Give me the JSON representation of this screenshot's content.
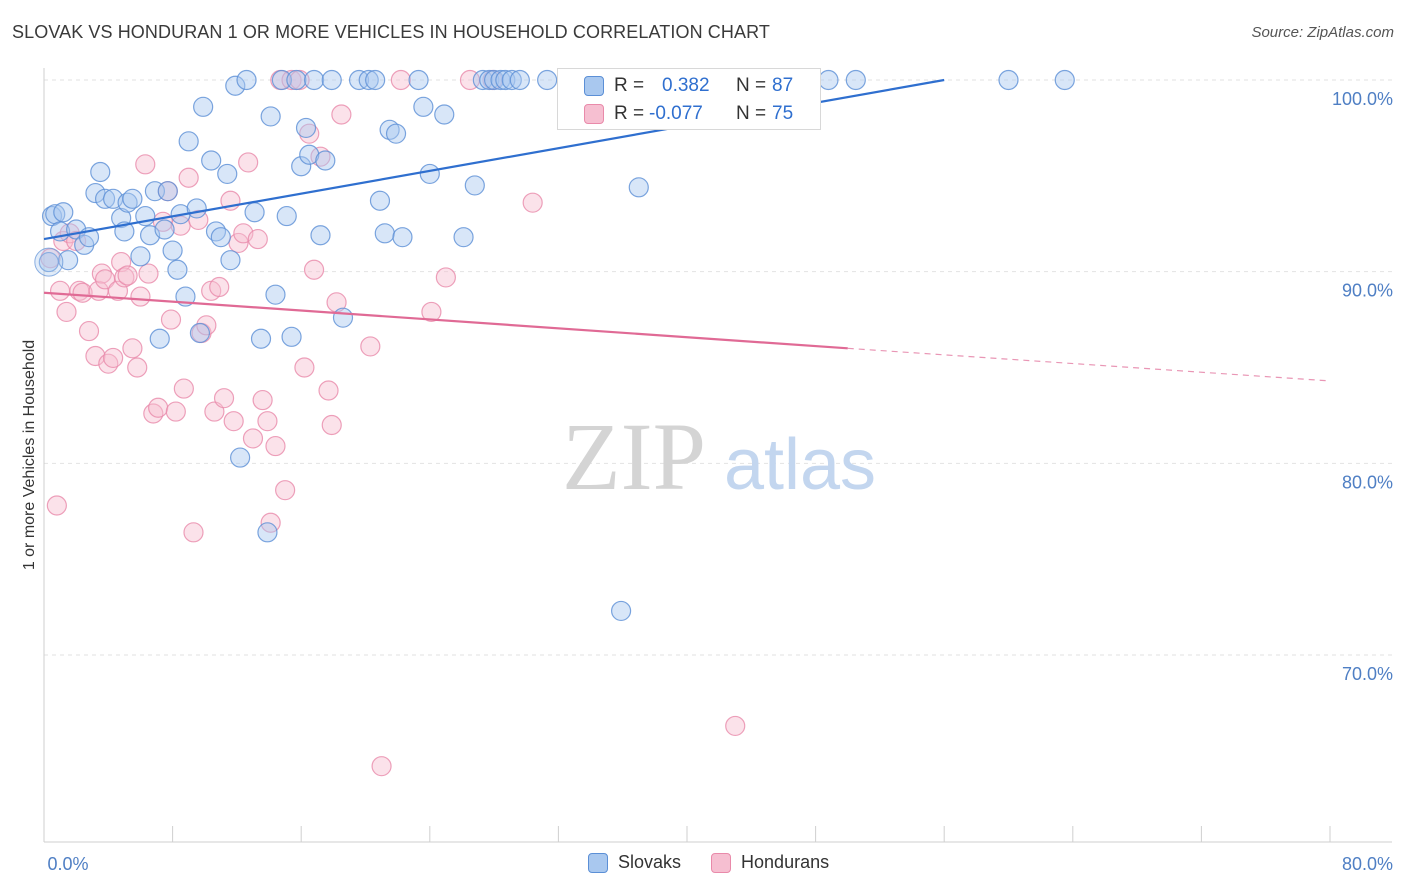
{
  "header": {
    "title": "SLOVAK VS HONDURAN 1 OR MORE VEHICLES IN HOUSEHOLD CORRELATION CHART",
    "source": "Source: ZipAtlas.com"
  },
  "watermark": {
    "zip": "ZIP",
    "atlas": "atlas"
  },
  "colors": {
    "slovaks_fill": "#a9c8ef",
    "slovaks_stroke": "#5b8fd6",
    "slovaks_line": "#2f6fcf",
    "hondurans_fill": "#f6bfd1",
    "hondurans_stroke": "#e98aaa",
    "hondurans_line": "#e06a95",
    "tick_text": "#4f7fc4"
  },
  "stats_legend": {
    "rows": [
      {
        "r_label": "R =",
        "r_value": "0.382",
        "n_label": "N =",
        "n_value": "87"
      },
      {
        "r_label": "R =",
        "r_value": "-0.077",
        "n_label": "N =",
        "n_value": "75"
      }
    ]
  },
  "chart_data": {
    "type": "scatter",
    "title": "SLOVAK VS HONDURAN 1 OR MORE VEHICLES IN HOUSEHOLD CORRELATION CHART",
    "xlabel": "",
    "ylabel": "1 or more Vehicles in Household",
    "xlim": [
      0,
      80
    ],
    "ylim": [
      61,
      101.5
    ],
    "x_tick_labels": [
      "0.0%",
      "80.0%"
    ],
    "y_ticks": [
      70,
      80,
      90,
      100
    ],
    "y_tick_labels": [
      "70.0%",
      "80.0%",
      "90.0%",
      "100.0%"
    ],
    "grid": true,
    "legend_position": "bottom",
    "series": [
      {
        "name": "Slovaks",
        "r": 0.382,
        "n": 87,
        "trend": {
          "x": [
            0,
            56
          ],
          "y": [
            91.7,
            100.0
          ]
        },
        "points": [
          [
            0.3,
            90.5
          ],
          [
            0.5,
            92.9
          ],
          [
            0.7,
            93.0
          ],
          [
            1.0,
            92.1
          ],
          [
            1.2,
            93.1
          ],
          [
            1.5,
            90.6
          ],
          [
            2.0,
            92.2
          ],
          [
            2.5,
            91.4
          ],
          [
            2.8,
            91.8
          ],
          [
            3.2,
            94.1
          ],
          [
            3.5,
            95.2
          ],
          [
            3.8,
            93.8
          ],
          [
            4.3,
            93.8
          ],
          [
            4.8,
            92.8
          ],
          [
            5.0,
            92.1
          ],
          [
            5.2,
            93.6
          ],
          [
            5.5,
            93.8
          ],
          [
            6.0,
            90.8
          ],
          [
            6.3,
            92.9
          ],
          [
            6.6,
            91.9
          ],
          [
            6.9,
            94.2
          ],
          [
            7.2,
            86.5
          ],
          [
            7.5,
            92.2
          ],
          [
            7.7,
            94.2
          ],
          [
            8.0,
            91.1
          ],
          [
            8.3,
            90.1
          ],
          [
            8.5,
            93.0
          ],
          [
            8.8,
            88.7
          ],
          [
            9.0,
            96.8
          ],
          [
            9.5,
            93.3
          ],
          [
            9.7,
            86.8
          ],
          [
            9.9,
            98.6
          ],
          [
            10.4,
            95.8
          ],
          [
            10.7,
            92.1
          ],
          [
            11.0,
            91.8
          ],
          [
            11.4,
            95.1
          ],
          [
            11.6,
            90.6
          ],
          [
            11.9,
            99.7
          ],
          [
            12.2,
            80.3
          ],
          [
            12.6,
            100.0
          ],
          [
            13.1,
            93.1
          ],
          [
            13.5,
            86.5
          ],
          [
            13.9,
            76.4
          ],
          [
            14.1,
            98.1
          ],
          [
            14.4,
            88.8
          ],
          [
            14.8,
            100.0
          ],
          [
            15.1,
            92.9
          ],
          [
            15.4,
            86.6
          ],
          [
            15.7,
            100.0
          ],
          [
            16.0,
            95.5
          ],
          [
            16.3,
            97.5
          ],
          [
            16.5,
            96.1
          ],
          [
            16.8,
            100.0
          ],
          [
            17.2,
            91.9
          ],
          [
            17.5,
            95.8
          ],
          [
            17.9,
            100.0
          ],
          [
            18.6,
            87.6
          ],
          [
            19.6,
            100.0
          ],
          [
            20.2,
            100.0
          ],
          [
            20.6,
            100.0
          ],
          [
            20.9,
            93.7
          ],
          [
            21.2,
            92.0
          ],
          [
            21.5,
            97.4
          ],
          [
            21.9,
            97.2
          ],
          [
            22.3,
            91.8
          ],
          [
            23.3,
            100.0
          ],
          [
            23.6,
            98.6
          ],
          [
            24.0,
            95.1
          ],
          [
            24.9,
            98.2
          ],
          [
            26.1,
            91.8
          ],
          [
            26.8,
            94.5
          ],
          [
            27.3,
            100.0
          ],
          [
            27.7,
            100.0
          ],
          [
            28.0,
            100.0
          ],
          [
            28.4,
            100.0
          ],
          [
            28.7,
            100.0
          ],
          [
            29.1,
            100.0
          ],
          [
            29.6,
            100.0
          ],
          [
            31.3,
            100.0
          ],
          [
            35.9,
            72.3
          ],
          [
            37.0,
            94.4
          ],
          [
            42.1,
            100.0
          ],
          [
            43.6,
            100.0
          ],
          [
            47.0,
            100.0
          ],
          [
            48.8,
            100.0
          ],
          [
            50.5,
            100.0
          ],
          [
            60.0,
            100.0
          ],
          [
            63.5,
            100.0
          ]
        ]
      },
      {
        "name": "Hondurans",
        "r": -0.077,
        "n": 75,
        "trend": {
          "x": [
            0,
            50
          ],
          "y": [
            88.9,
            86.0
          ]
        },
        "trend_dashed": {
          "x": [
            50,
            80
          ],
          "y": [
            86.0,
            84.3
          ]
        },
        "points": [
          [
            0.4,
            90.7
          ],
          [
            0.8,
            77.8
          ],
          [
            1.0,
            89.0
          ],
          [
            1.2,
            91.6
          ],
          [
            1.4,
            87.9
          ],
          [
            1.6,
            92.0
          ],
          [
            2.0,
            91.6
          ],
          [
            2.2,
            89.0
          ],
          [
            2.4,
            88.9
          ],
          [
            2.8,
            86.9
          ],
          [
            3.2,
            85.6
          ],
          [
            3.4,
            89.0
          ],
          [
            3.6,
            89.9
          ],
          [
            3.8,
            89.6
          ],
          [
            4.0,
            85.2
          ],
          [
            4.3,
            85.5
          ],
          [
            4.6,
            89.0
          ],
          [
            4.8,
            90.5
          ],
          [
            5.0,
            89.7
          ],
          [
            5.2,
            89.8
          ],
          [
            5.5,
            86.0
          ],
          [
            5.8,
            85.0
          ],
          [
            6.0,
            88.7
          ],
          [
            6.3,
            95.6
          ],
          [
            6.5,
            89.9
          ],
          [
            6.8,
            82.6
          ],
          [
            7.1,
            82.9
          ],
          [
            7.4,
            92.6
          ],
          [
            7.7,
            94.2
          ],
          [
            7.9,
            87.5
          ],
          [
            8.2,
            82.7
          ],
          [
            8.5,
            92.4
          ],
          [
            8.7,
            83.9
          ],
          [
            9.0,
            94.9
          ],
          [
            9.3,
            76.4
          ],
          [
            9.6,
            92.7
          ],
          [
            9.8,
            86.8
          ],
          [
            10.1,
            87.2
          ],
          [
            10.4,
            89.0
          ],
          [
            10.6,
            82.7
          ],
          [
            10.9,
            89.2
          ],
          [
            11.2,
            83.4
          ],
          [
            11.6,
            93.7
          ],
          [
            11.8,
            82.2
          ],
          [
            12.1,
            91.5
          ],
          [
            12.4,
            92.0
          ],
          [
            12.7,
            95.7
          ],
          [
            13.0,
            81.3
          ],
          [
            13.3,
            91.7
          ],
          [
            13.6,
            83.3
          ],
          [
            13.9,
            82.2
          ],
          [
            14.1,
            76.9
          ],
          [
            14.4,
            80.9
          ],
          [
            14.7,
            100.0
          ],
          [
            15.0,
            78.6
          ],
          [
            15.4,
            100.0
          ],
          [
            15.9,
            100.0
          ],
          [
            16.2,
            85.0
          ],
          [
            16.5,
            97.2
          ],
          [
            16.8,
            90.1
          ],
          [
            17.2,
            96.0
          ],
          [
            17.7,
            83.8
          ],
          [
            17.9,
            82.0
          ],
          [
            18.2,
            88.4
          ],
          [
            18.5,
            98.2
          ],
          [
            20.3,
            86.1
          ],
          [
            21.0,
            64.2
          ],
          [
            22.2,
            100.0
          ],
          [
            24.1,
            87.9
          ],
          [
            25.0,
            89.7
          ],
          [
            26.5,
            100.0
          ],
          [
            27.9,
            100.0
          ],
          [
            30.4,
            93.6
          ],
          [
            36.7,
            100.0
          ],
          [
            43.0,
            66.3
          ]
        ]
      }
    ]
  }
}
